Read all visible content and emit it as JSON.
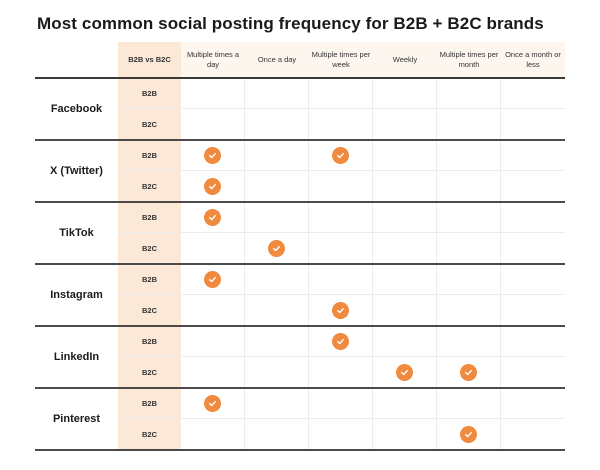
{
  "title": "Most common social posting frequency for B2B + B2C brands",
  "header": {
    "segment_col": "B2B vs B2C",
    "frequencies": [
      "Multiple times a day",
      "Once a day",
      "Multiple times per week",
      "Weekly",
      "Multiple times per month",
      "Once a month or less"
    ]
  },
  "colors": {
    "accent": "#f08a3e",
    "segment_bg": "#fbe8d7",
    "header_bg": "#fdf6ef"
  },
  "chart_data": {
    "type": "table",
    "title": "Most common social posting frequency for B2B + B2C brands",
    "columns": [
      "Multiple times a day",
      "Once a day",
      "Multiple times per week",
      "Weekly",
      "Multiple times per month",
      "Once a month or less"
    ],
    "rows": [
      {
        "platform": "Facebook",
        "segment": "B2B",
        "checked": []
      },
      {
        "platform": "Facebook",
        "segment": "B2C",
        "checked": []
      },
      {
        "platform": "X (Twitter)",
        "segment": "B2B",
        "checked": [
          "Multiple times a day",
          "Multiple times per week"
        ]
      },
      {
        "platform": "X (Twitter)",
        "segment": "B2C",
        "checked": [
          "Multiple times a day"
        ]
      },
      {
        "platform": "TikTok",
        "segment": "B2B",
        "checked": [
          "Multiple times a day"
        ]
      },
      {
        "platform": "TikTok",
        "segment": "B2C",
        "checked": [
          "Once a day"
        ]
      },
      {
        "platform": "Instagram",
        "segment": "B2B",
        "checked": [
          "Multiple times a day"
        ]
      },
      {
        "platform": "Instagram",
        "segment": "B2C",
        "checked": [
          "Multiple times per week"
        ]
      },
      {
        "platform": "LinkedIn",
        "segment": "B2B",
        "checked": [
          "Multiple times per week"
        ]
      },
      {
        "platform": "LinkedIn",
        "segment": "B2C",
        "checked": [
          "Weekly",
          "Multiple times per month"
        ]
      },
      {
        "platform": "Pinterest",
        "segment": "B2B",
        "checked": [
          "Multiple times a day"
        ]
      },
      {
        "platform": "Pinterest",
        "segment": "B2C",
        "checked": [
          "Multiple times per month"
        ]
      }
    ]
  },
  "groups": [
    {
      "platform": "Facebook",
      "rows": [
        {
          "segment": "B2B",
          "marks": [
            0,
            0,
            0,
            0,
            0,
            0
          ]
        },
        {
          "segment": "B2C",
          "marks": [
            0,
            0,
            0,
            0,
            0,
            0
          ]
        }
      ]
    },
    {
      "platform": "X (Twitter)",
      "rows": [
        {
          "segment": "B2B",
          "marks": [
            1,
            0,
            1,
            0,
            0,
            0
          ]
        },
        {
          "segment": "B2C",
          "marks": [
            1,
            0,
            0,
            0,
            0,
            0
          ]
        }
      ]
    },
    {
      "platform": "TikTok",
      "rows": [
        {
          "segment": "B2B",
          "marks": [
            1,
            0,
            0,
            0,
            0,
            0
          ]
        },
        {
          "segment": "B2C",
          "marks": [
            0,
            1,
            0,
            0,
            0,
            0
          ]
        }
      ]
    },
    {
      "platform": "Instagram",
      "rows": [
        {
          "segment": "B2B",
          "marks": [
            1,
            0,
            0,
            0,
            0,
            0
          ]
        },
        {
          "segment": "B2C",
          "marks": [
            0,
            0,
            1,
            0,
            0,
            0
          ]
        }
      ]
    },
    {
      "platform": "LinkedIn",
      "rows": [
        {
          "segment": "B2B",
          "marks": [
            0,
            0,
            1,
            0,
            0,
            0
          ]
        },
        {
          "segment": "B2C",
          "marks": [
            0,
            0,
            0,
            1,
            1,
            0
          ]
        }
      ]
    },
    {
      "platform": "Pinterest",
      "rows": [
        {
          "segment": "B2B",
          "marks": [
            1,
            0,
            0,
            0,
            0,
            0
          ]
        },
        {
          "segment": "B2C",
          "marks": [
            0,
            0,
            0,
            0,
            1,
            0
          ]
        }
      ]
    }
  ]
}
